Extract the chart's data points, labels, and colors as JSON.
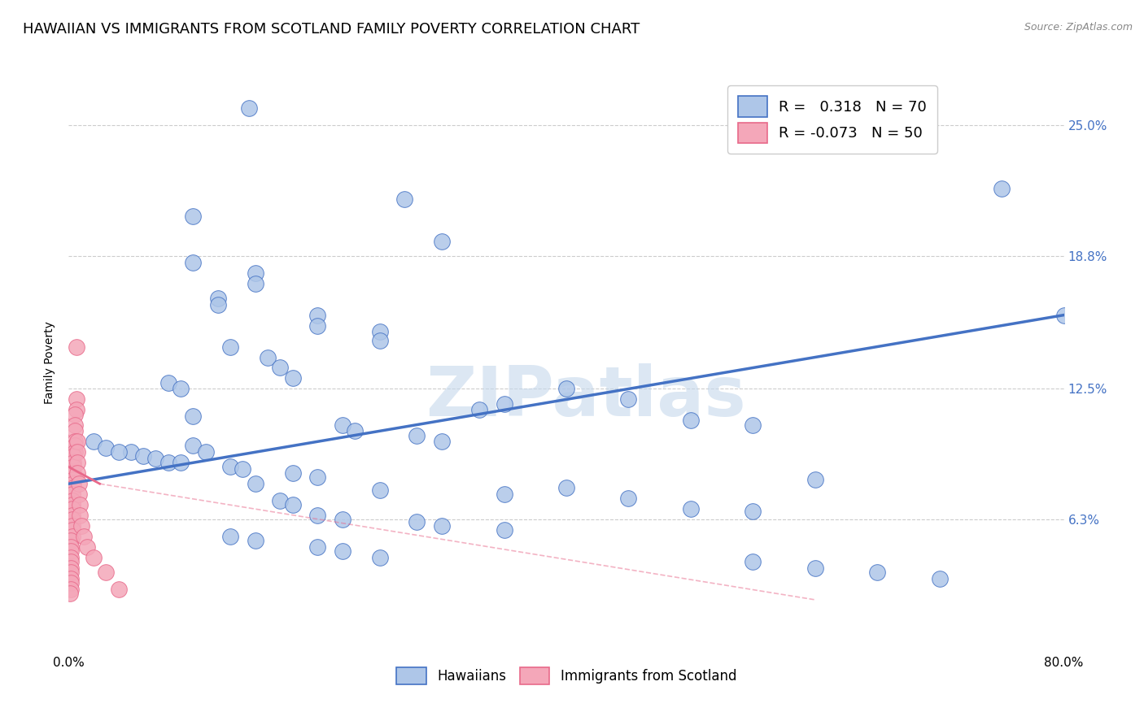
{
  "title": "HAWAIIAN VS IMMIGRANTS FROM SCOTLAND FAMILY POVERTY CORRELATION CHART",
  "source": "Source: ZipAtlas.com",
  "ylabel": "Family Poverty",
  "yticks_labels": [
    "6.3%",
    "12.5%",
    "18.8%",
    "25.0%"
  ],
  "ytick_values": [
    0.063,
    0.125,
    0.188,
    0.25
  ],
  "xrange": [
    0.0,
    0.8
  ],
  "yrange": [
    0.0,
    0.275
  ],
  "watermark": "ZIPatlas",
  "legend_hawaiians_R": 0.318,
  "legend_hawaiians_N": 70,
  "legend_scotland_R": -0.073,
  "legend_scotland_N": 50,
  "blue_scatter": [
    [
      0.145,
      0.258
    ],
    [
      0.27,
      0.215
    ],
    [
      0.1,
      0.207
    ],
    [
      0.3,
      0.195
    ],
    [
      0.1,
      0.185
    ],
    [
      0.15,
      0.18
    ],
    [
      0.15,
      0.175
    ],
    [
      0.12,
      0.168
    ],
    [
      0.12,
      0.165
    ],
    [
      0.2,
      0.16
    ],
    [
      0.2,
      0.155
    ],
    [
      0.25,
      0.152
    ],
    [
      0.25,
      0.148
    ],
    [
      0.13,
      0.145
    ],
    [
      0.16,
      0.14
    ],
    [
      0.17,
      0.135
    ],
    [
      0.18,
      0.13
    ],
    [
      0.08,
      0.128
    ],
    [
      0.09,
      0.125
    ],
    [
      0.4,
      0.125
    ],
    [
      0.45,
      0.12
    ],
    [
      0.35,
      0.118
    ],
    [
      0.33,
      0.115
    ],
    [
      0.1,
      0.112
    ],
    [
      0.5,
      0.11
    ],
    [
      0.55,
      0.108
    ],
    [
      0.22,
      0.108
    ],
    [
      0.23,
      0.105
    ],
    [
      0.28,
      0.103
    ],
    [
      0.3,
      0.1
    ],
    [
      0.1,
      0.098
    ],
    [
      0.11,
      0.095
    ],
    [
      0.05,
      0.095
    ],
    [
      0.06,
      0.093
    ],
    [
      0.07,
      0.092
    ],
    [
      0.08,
      0.09
    ],
    [
      0.09,
      0.09
    ],
    [
      0.13,
      0.088
    ],
    [
      0.14,
      0.087
    ],
    [
      0.18,
      0.085
    ],
    [
      0.2,
      0.083
    ],
    [
      0.6,
      0.082
    ],
    [
      0.15,
      0.08
    ],
    [
      0.4,
      0.078
    ],
    [
      0.25,
      0.077
    ],
    [
      0.35,
      0.075
    ],
    [
      0.45,
      0.073
    ],
    [
      0.17,
      0.072
    ],
    [
      0.18,
      0.07
    ],
    [
      0.5,
      0.068
    ],
    [
      0.55,
      0.067
    ],
    [
      0.2,
      0.065
    ],
    [
      0.22,
      0.063
    ],
    [
      0.28,
      0.062
    ],
    [
      0.3,
      0.06
    ],
    [
      0.35,
      0.058
    ],
    [
      0.13,
      0.055
    ],
    [
      0.15,
      0.053
    ],
    [
      0.2,
      0.05
    ],
    [
      0.22,
      0.048
    ],
    [
      0.25,
      0.045
    ],
    [
      0.55,
      0.043
    ],
    [
      0.6,
      0.04
    ],
    [
      0.65,
      0.038
    ],
    [
      0.7,
      0.035
    ],
    [
      0.02,
      0.1
    ],
    [
      0.03,
      0.097
    ],
    [
      0.04,
      0.095
    ],
    [
      0.75,
      0.22
    ],
    [
      0.8,
      0.16
    ]
  ],
  "pink_scatter": [
    [
      0.006,
      0.145
    ],
    [
      0.006,
      0.12
    ],
    [
      0.006,
      0.115
    ],
    [
      0.005,
      0.113
    ],
    [
      0.005,
      0.108
    ],
    [
      0.005,
      0.105
    ],
    [
      0.005,
      0.1
    ],
    [
      0.005,
      0.098
    ],
    [
      0.005,
      0.095
    ],
    [
      0.004,
      0.093
    ],
    [
      0.004,
      0.09
    ],
    [
      0.004,
      0.088
    ],
    [
      0.004,
      0.085
    ],
    [
      0.004,
      0.082
    ],
    [
      0.004,
      0.08
    ],
    [
      0.004,
      0.078
    ],
    [
      0.003,
      0.075
    ],
    [
      0.003,
      0.072
    ],
    [
      0.003,
      0.07
    ],
    [
      0.003,
      0.068
    ],
    [
      0.003,
      0.065
    ],
    [
      0.003,
      0.063
    ],
    [
      0.003,
      0.06
    ],
    [
      0.003,
      0.058
    ],
    [
      0.003,
      0.055
    ],
    [
      0.002,
      0.053
    ],
    [
      0.002,
      0.05
    ],
    [
      0.002,
      0.048
    ],
    [
      0.002,
      0.045
    ],
    [
      0.002,
      0.043
    ],
    [
      0.002,
      0.04
    ],
    [
      0.002,
      0.038
    ],
    [
      0.002,
      0.035
    ],
    [
      0.002,
      0.033
    ],
    [
      0.002,
      0.03
    ],
    [
      0.001,
      0.028
    ],
    [
      0.007,
      0.1
    ],
    [
      0.007,
      0.095
    ],
    [
      0.007,
      0.09
    ],
    [
      0.007,
      0.085
    ],
    [
      0.008,
      0.08
    ],
    [
      0.008,
      0.075
    ],
    [
      0.009,
      0.07
    ],
    [
      0.009,
      0.065
    ],
    [
      0.01,
      0.06
    ],
    [
      0.012,
      0.055
    ],
    [
      0.015,
      0.05
    ],
    [
      0.02,
      0.045
    ],
    [
      0.03,
      0.038
    ],
    [
      0.04,
      0.03
    ]
  ],
  "blue_line": {
    "x0": 0.0,
    "y0": 0.08,
    "x1": 0.8,
    "y1": 0.16
  },
  "pink_line_solid": {
    "x0": 0.0,
    "y0": 0.088,
    "x1": 0.025,
    "y1": 0.08
  },
  "pink_line_dash": {
    "x0": 0.025,
    "y0": 0.08,
    "x1": 0.6,
    "y1": 0.025
  },
  "blue_color": "#4472c4",
  "blue_scatter_color": "#aec6e8",
  "pink_color": "#e8698a",
  "pink_scatter_color": "#f4a7b9",
  "background_color": "#ffffff",
  "grid_color": "#cccccc",
  "title_fontsize": 13,
  "axis_fontsize": 10,
  "tick_fontsize": 11
}
